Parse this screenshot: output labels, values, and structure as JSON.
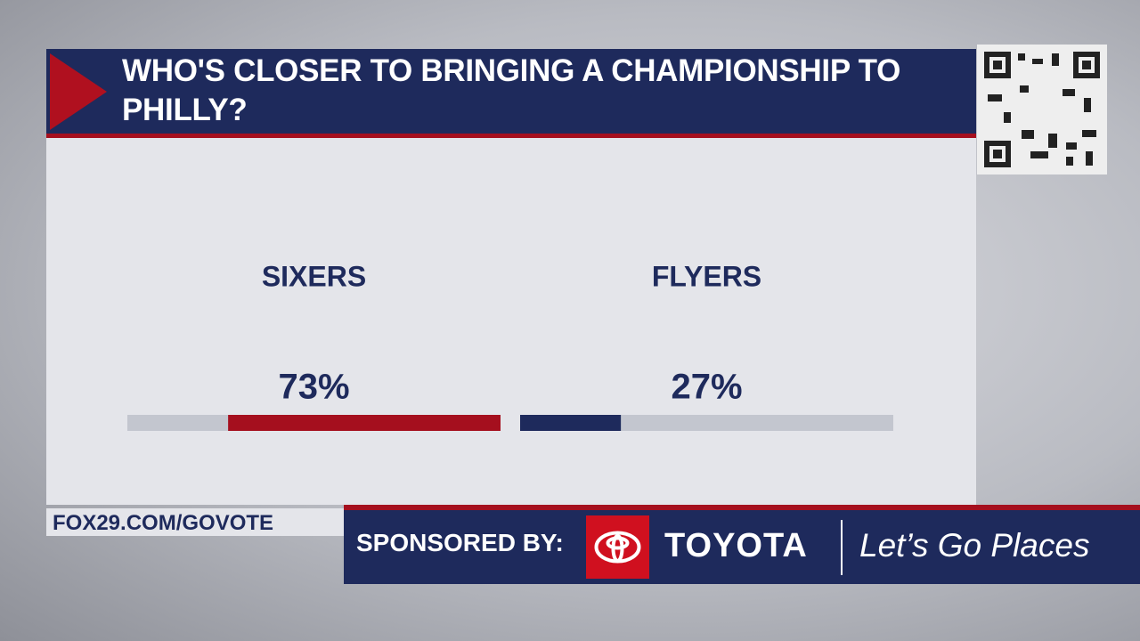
{
  "chart_data": {
    "type": "bar",
    "title": "WHO'S CLOSER TO BRINGING A CHAMPIONSHIP TO PHILLY?",
    "categories": [
      "SIXERS",
      "FLYERS"
    ],
    "values": [
      73,
      27
    ],
    "value_labels": [
      "73%",
      "27%"
    ],
    "colors": [
      "#a50f1e",
      "#1e2a5c"
    ],
    "xlim": [
      0,
      100
    ]
  },
  "footer": {
    "url": "FOX29.COM/GOVOTE",
    "sponsor_label": "SPONSORED BY:",
    "sponsor": "TOYOTA",
    "slogan": "Let’s Go Places"
  }
}
